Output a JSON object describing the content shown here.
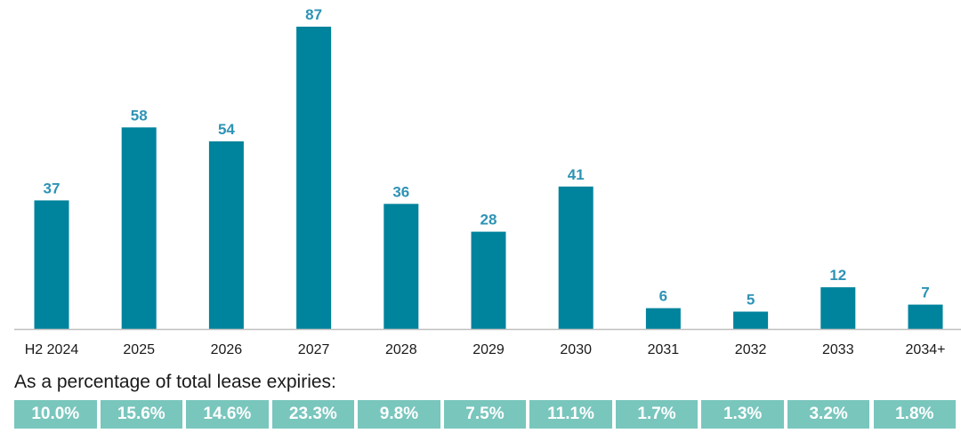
{
  "chart_data": {
    "type": "bar",
    "categories": [
      "H2 2024",
      "2025",
      "2026",
      "2027",
      "2028",
      "2029",
      "2030",
      "2031",
      "2032",
      "2033",
      "2034+"
    ],
    "values": [
      37,
      58,
      54,
      87,
      36,
      28,
      41,
      6,
      5,
      12,
      7
    ],
    "data_labels": [
      "37",
      "58",
      "54",
      "87",
      "36",
      "28",
      "41",
      "6",
      "5",
      "12",
      "7"
    ],
    "ylim": [
      0,
      90
    ],
    "grid": false,
    "legend": "none",
    "colors": {
      "bar": "#00839C",
      "data_label": "#2E93B5",
      "axis": "#BFBFBF",
      "tick_label": "#1A1A1A",
      "percent_cell": "#79C6BD"
    }
  },
  "percentage_table": {
    "label": "As a percentage of total lease expiries:",
    "values": [
      "10.0%",
      "15.6%",
      "14.6%",
      "23.3%",
      "9.8%",
      "7.5%",
      "11.1%",
      "1.7%",
      "1.3%",
      "3.2%",
      "1.8%"
    ]
  }
}
